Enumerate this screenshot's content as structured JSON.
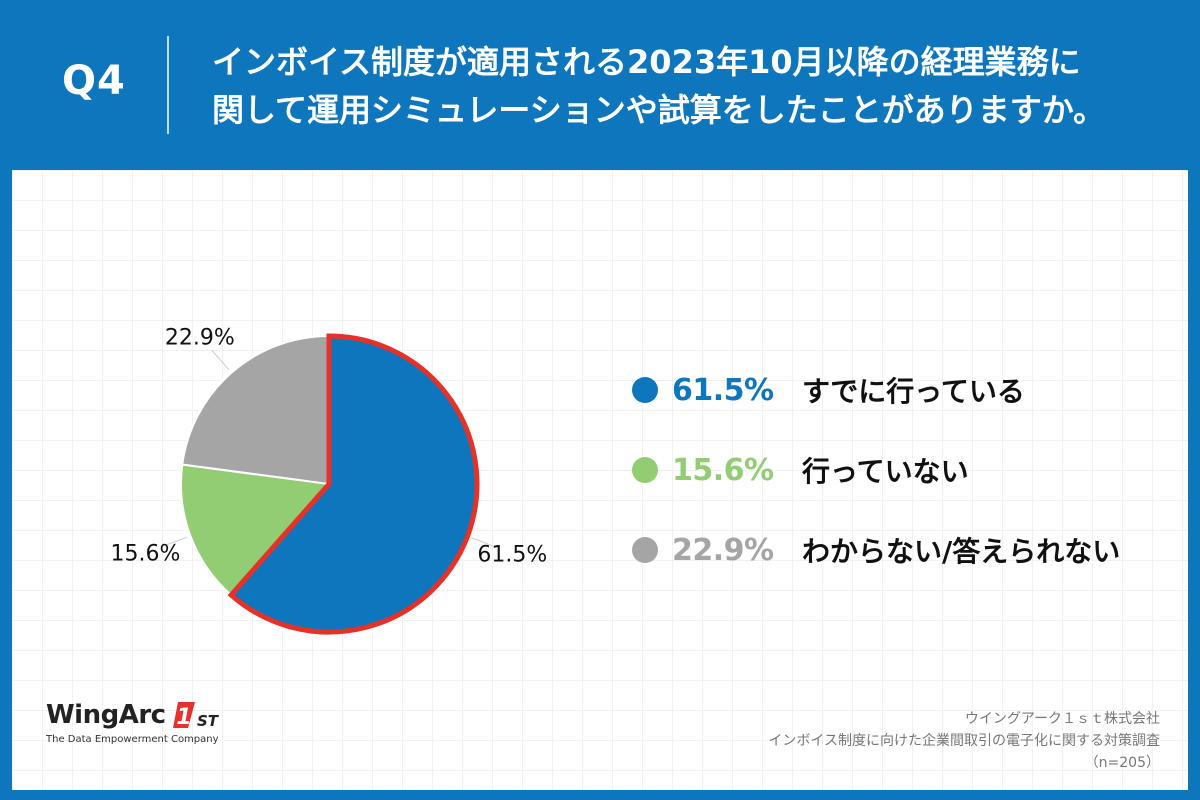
{
  "header": {
    "q_label": "Q4",
    "question_line1": "インボイス制度が適用される2023年10月以降の経理業務に",
    "question_line2": "関して運用シミュレーションや試算をしたことがありますか。"
  },
  "chart_data": {
    "type": "pie",
    "title": "",
    "slices": [
      {
        "label": "すでに行っている",
        "value": 61.5,
        "display": "61.5%",
        "color": "#0E76BC",
        "highlight": true
      },
      {
        "label": "行っていない",
        "value": 15.6,
        "display": "15.6%",
        "color": "#92CD74"
      },
      {
        "label": "わからない/答えられない",
        "value": 22.9,
        "display": "22.9%",
        "color": "#A5A5A5"
      }
    ],
    "start_angle_deg": 0,
    "direction": "clockwise",
    "highlight_color": "#E63128"
  },
  "legend": {
    "items": [
      {
        "value": "61.5%",
        "text": "すでに行っている",
        "color": "#0E76BC"
      },
      {
        "value": "15.6%",
        "text": "行っていない",
        "color": "#92CD74"
      },
      {
        "value": "22.9%",
        "text": "わからない/答えられない",
        "color": "#A5A5A5"
      }
    ]
  },
  "logo": {
    "brand": "WingArc",
    "mark_number": "1",
    "mark_suffix": "ST",
    "tagline": "The Data Empowerment Company"
  },
  "source": {
    "company": "ウイングアーク１ｓｔ株式会社",
    "survey": "インボイス制度に向けた企業間取引の電子化に関する対策調査",
    "sample": "（n=205）"
  }
}
